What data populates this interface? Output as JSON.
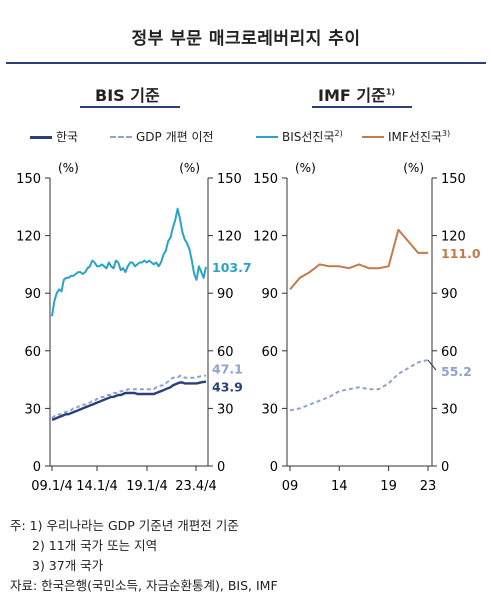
{
  "title": "정부 부문 매크로레버리지 추이",
  "panels": {
    "left": {
      "heading": "BIS 기준"
    },
    "right": {
      "heading": "IMF 기준",
      "heading_sup": "1)"
    }
  },
  "legend": [
    {
      "label": "한국",
      "sup": "",
      "color": "#2b3f7a",
      "dash": false
    },
    {
      "label": "GDP 개편 이전",
      "sup": "",
      "color": "#8fa3cf",
      "dash": true
    },
    {
      "label": "BIS선진국",
      "sup": "2)",
      "color": "#2aa3c6",
      "dash": false
    },
    {
      "label": "IMF선진국",
      "sup": "3)",
      "color": "#c57a4a",
      "dash": false
    }
  ],
  "chart_data": [
    {
      "type": "line",
      "name": "BIS 기준",
      "x_tick_labels": [
        "09.1/4",
        "14.1/4",
        "19.1/4",
        "23.4/4"
      ],
      "y_left_label": "(%)",
      "y_right_label": "(%)",
      "ylim": [
        0,
        150
      ],
      "y_ticks": [
        0,
        30,
        60,
        90,
        120,
        150
      ],
      "series": [
        {
          "name": "BIS선진국",
          "color": "#2aa3c6",
          "end_label": "103.7",
          "values": [
            78,
            86,
            90,
            92,
            91,
            97,
            98,
            98,
            99,
            99,
            100,
            101,
            101,
            100,
            101,
            103,
            104,
            107,
            106,
            104,
            104,
            105,
            104,
            103,
            106,
            104,
            103,
            107,
            106,
            102,
            103,
            101,
            104,
            106,
            106,
            104,
            105,
            106,
            106,
            107,
            106,
            107,
            106,
            105,
            106,
            104,
            106,
            110,
            112,
            117,
            119,
            124,
            128,
            134,
            129,
            122,
            118,
            116,
            113,
            107,
            100,
            97,
            104,
            101,
            98,
            103.7
          ]
        },
        {
          "name": "GDP 개편 이전",
          "color": "#8fa3cf",
          "end_label": "47.1",
          "values": [
            25,
            26,
            26,
            27,
            27,
            28,
            28,
            29,
            29,
            30,
            30,
            31,
            31,
            32,
            32,
            33,
            33,
            34,
            34,
            35,
            35,
            36,
            36,
            37,
            37,
            37,
            38,
            38,
            38,
            39,
            39,
            39,
            40,
            40,
            40,
            40,
            40,
            40,
            40,
            40,
            40,
            40,
            40,
            40,
            41,
            41,
            42,
            42,
            43,
            44,
            45,
            46,
            46,
            46,
            47,
            47,
            46,
            46,
            46,
            46,
            46,
            46,
            46.5,
            46.8,
            47,
            47.1
          ]
        },
        {
          "name": "한국",
          "color": "#2b3f7a",
          "end_label": "43.9",
          "values": [
            24,
            24.5,
            25,
            25.5,
            26,
            26.5,
            27,
            27,
            27.5,
            28,
            28.5,
            29,
            29.5,
            30,
            30.5,
            31,
            31.5,
            32,
            32.5,
            33,
            33.5,
            34,
            34.5,
            35,
            35.5,
            36,
            36,
            36.5,
            37,
            37,
            37.5,
            38,
            38,
            38,
            38,
            38,
            37.5,
            37.5,
            37.5,
            37.5,
            37.5,
            37.5,
            37.5,
            37.5,
            38,
            38.5,
            39,
            39.5,
            40,
            40.5,
            41,
            42,
            42.5,
            43,
            43.5,
            43.5,
            43,
            43,
            43,
            43,
            43,
            43,
            43.3,
            43.6,
            43.8,
            43.9
          ]
        }
      ]
    },
    {
      "type": "line",
      "name": "IMF 기준",
      "x_tick_labels": [
        "09",
        "14",
        "19",
        "23"
      ],
      "y_left_label": "(%)",
      "y_right_label": "(%)",
      "ylim": [
        0,
        150
      ],
      "y_ticks": [
        0,
        30,
        60,
        90,
        120,
        150
      ],
      "x": [
        2009,
        2010,
        2011,
        2012,
        2013,
        2014,
        2015,
        2016,
        2017,
        2018,
        2019,
        2020,
        2021,
        2022,
        2023
      ],
      "series": [
        {
          "name": "IMF선진국",
          "color": "#c57a4a",
          "end_label": "111.0",
          "values": [
            92,
            98,
            101,
            105,
            104,
            104,
            103,
            105,
            103,
            103,
            104,
            123,
            117,
            111,
            111.0
          ]
        },
        {
          "name": "한국",
          "color": "#8fa3cf",
          "end_label": "55.2",
          "values": [
            29,
            30,
            32,
            34,
            36,
            39,
            40,
            41,
            40,
            40,
            43,
            48,
            51,
            54,
            55.2
          ]
        }
      ]
    }
  ],
  "notes": [
    "주: 1) 우리나라는 GDP 기준년 개편전 기준",
    "2) 11개 국가 또는 지역",
    "3) 37개 국가",
    "자료: 한국은행(국민소득, 자금순환통계), BIS, IMF"
  ]
}
